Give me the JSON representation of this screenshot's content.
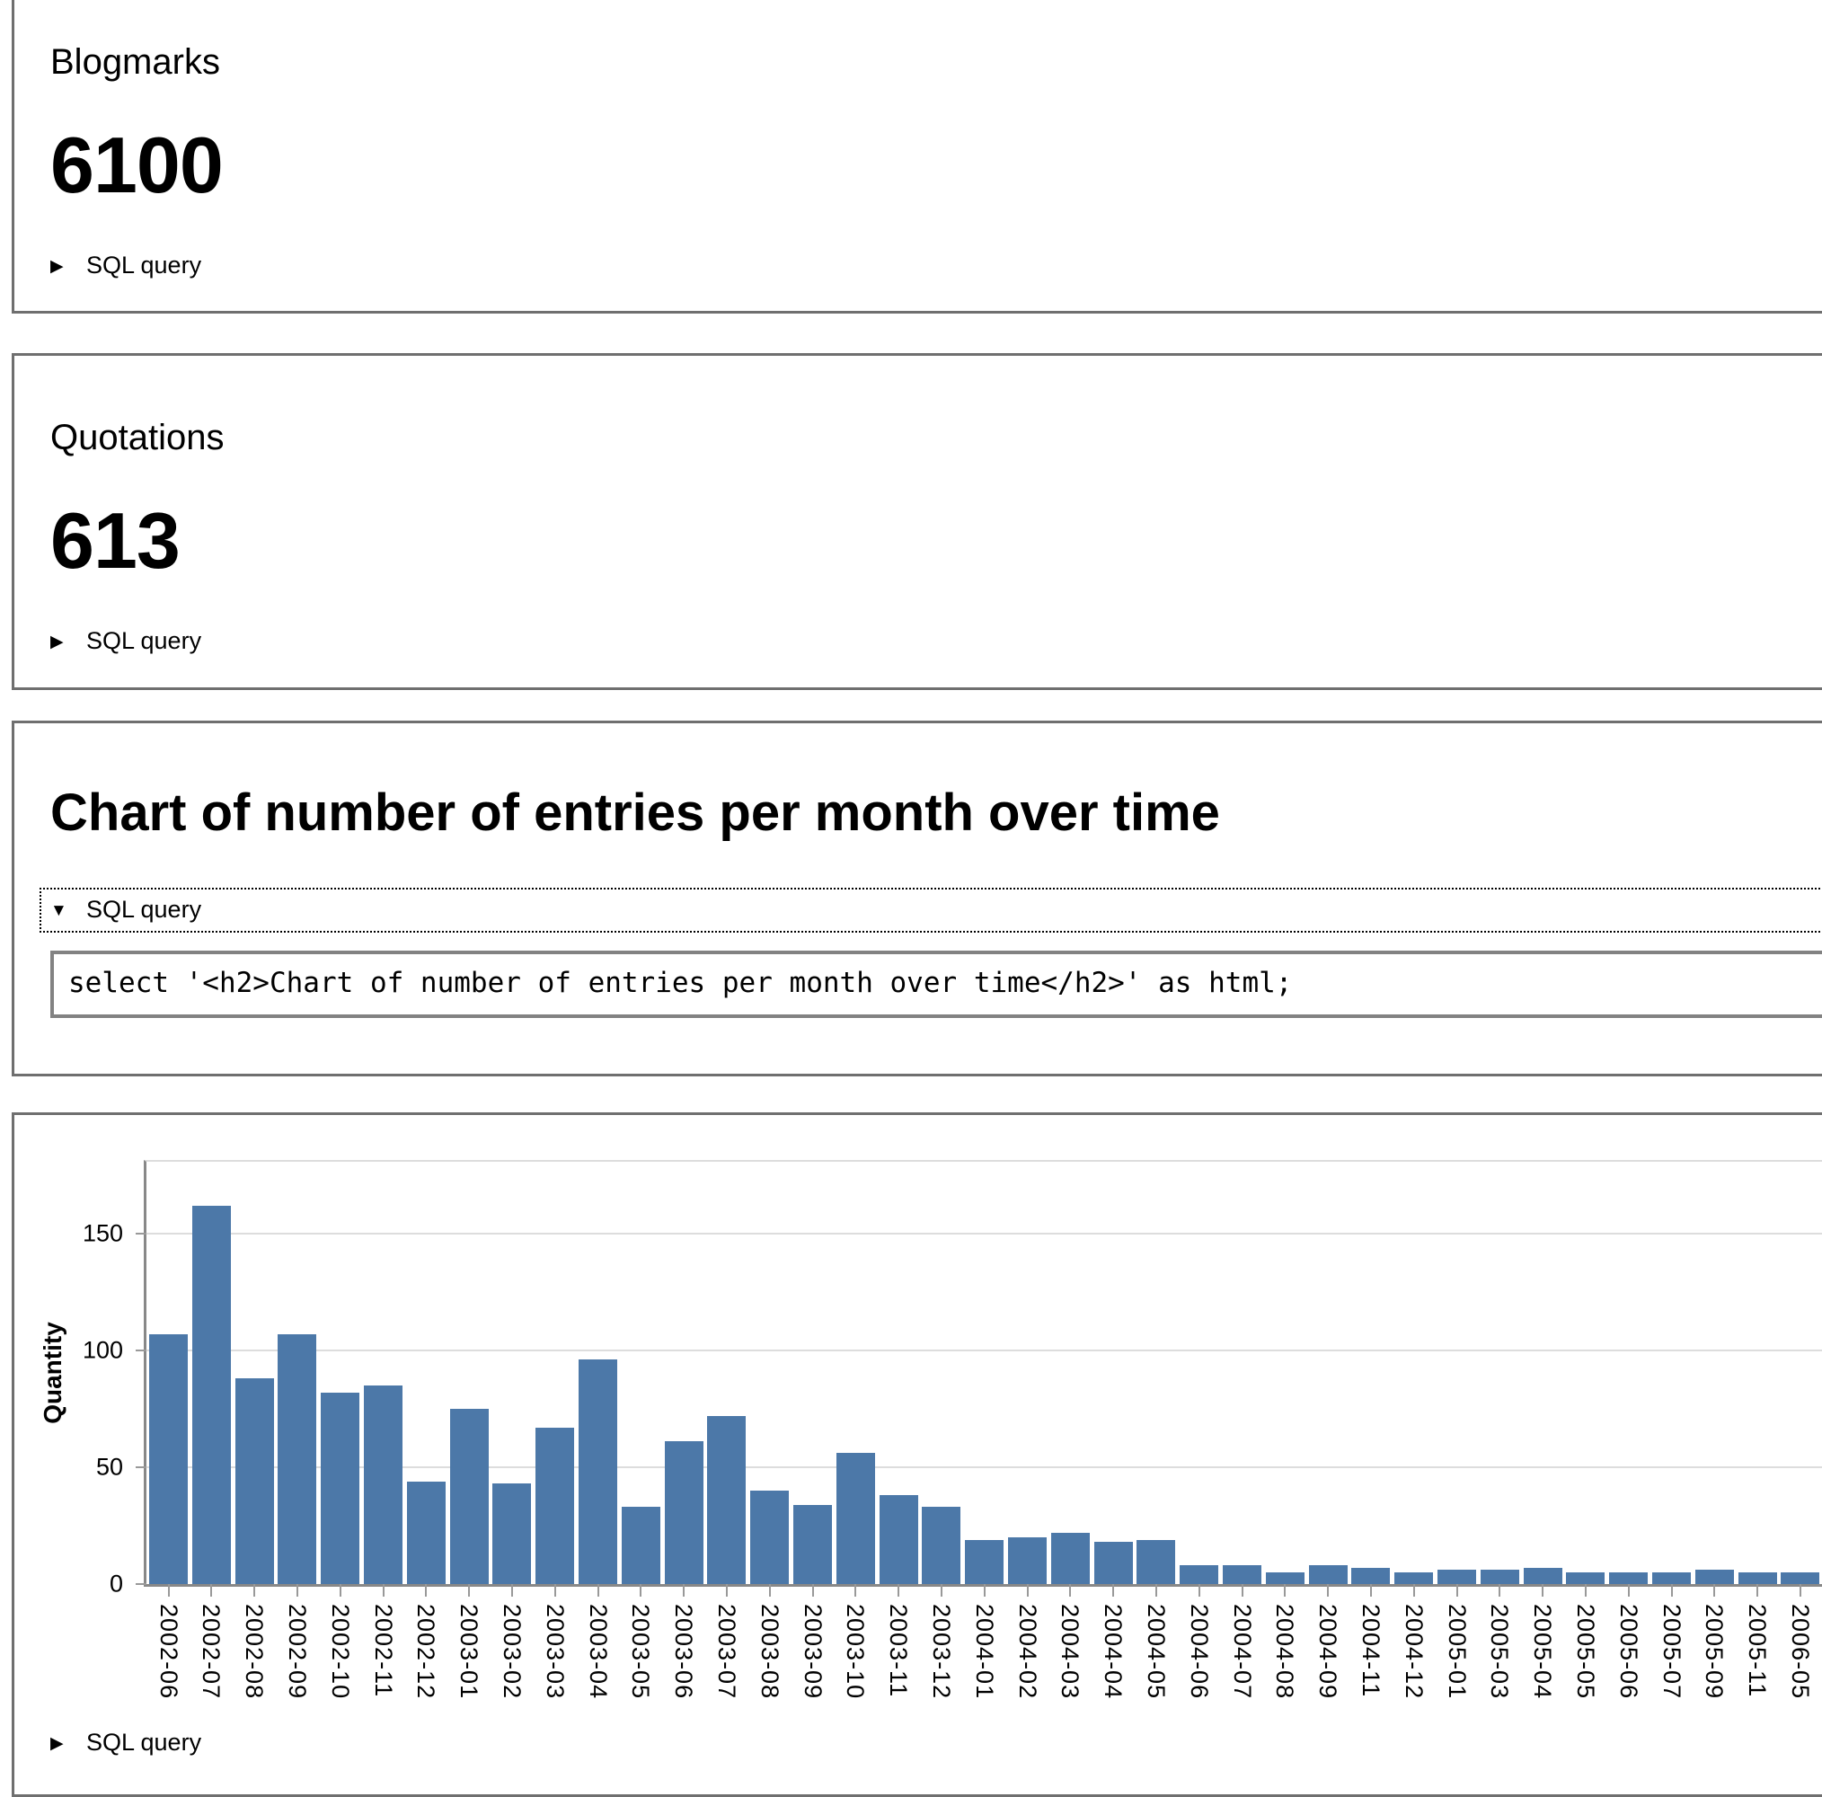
{
  "cards": [
    {
      "label": "Blogmarks",
      "value": "6100",
      "sql_toggle": "SQL query"
    },
    {
      "label": "Quotations",
      "value": "613",
      "sql_toggle": "SQL query"
    },
    {
      "heading": "Chart of number of entries per month over time",
      "sql_toggle": "SQL query",
      "sql_code": "select '<h2>Chart of number of entries per month over time</h2>' as html;"
    },
    {
      "sql_toggle": "SQL query"
    }
  ],
  "chart_data": {
    "type": "bar",
    "title": "",
    "xlabel": "",
    "ylabel": "Quantity",
    "categories": [
      "2002-06",
      "2002-07",
      "2002-08",
      "2002-09",
      "2002-10",
      "2002-11",
      "2002-12",
      "2003-01",
      "2003-02",
      "2003-03",
      "2003-04",
      "2003-05",
      "2003-06",
      "2003-07",
      "2003-08",
      "2003-09",
      "2003-10",
      "2003-11",
      "2003-12",
      "2004-01",
      "2004-02",
      "2004-03",
      "2004-04",
      "2004-05",
      "2004-06",
      "2004-07",
      "2004-08",
      "2004-09",
      "2004-11",
      "2004-12",
      "2005-01",
      "2005-03",
      "2005-04",
      "2005-05",
      "2005-06",
      "2005-07",
      "2005-09",
      "2005-11",
      "2006-05"
    ],
    "values": [
      107,
      162,
      88,
      107,
      82,
      85,
      44,
      75,
      43,
      67,
      96,
      33,
      61,
      72,
      40,
      34,
      56,
      38,
      33,
      19,
      20,
      22,
      18,
      19,
      8,
      8,
      5,
      8,
      7,
      5,
      6,
      6,
      7,
      5,
      5,
      5,
      6,
      5,
      5
    ],
    "yticks": [
      0,
      50,
      100,
      150
    ],
    "ylim": [
      0,
      181
    ],
    "grid": true,
    "legend_position": "none",
    "bar_color": "#4c78a8",
    "gridline_color": "#dddddd",
    "axis_color": "#888888"
  }
}
